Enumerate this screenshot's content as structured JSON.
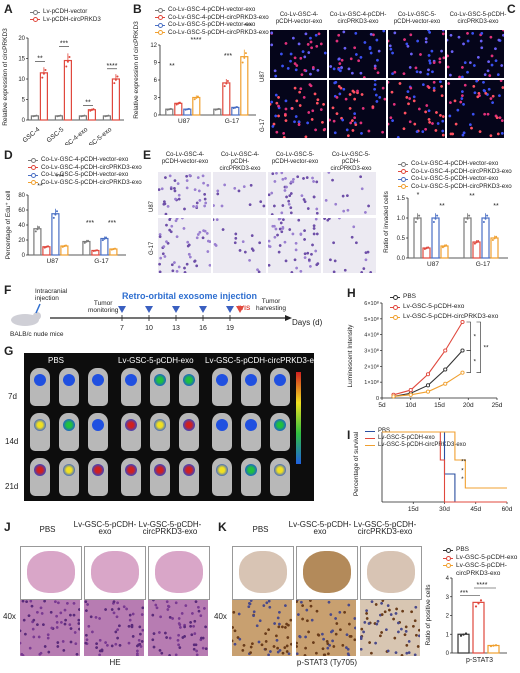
{
  "panels": {
    "A": {
      "label": "A",
      "ylabel": "Relative expression of circPRKD3",
      "legend": [
        "Lv-pCDH-vector",
        "Lv-pCDH-circPRKD3"
      ],
      "categories": [
        "GSC-4",
        "GSC-5",
        "GSC-4-exo",
        "GSC-5-exo"
      ],
      "yticks": [
        "0",
        "5",
        "10",
        "15",
        "20"
      ],
      "sig": [
        "**",
        "***",
        "**",
        "****"
      ]
    },
    "B": {
      "label": "B",
      "ylabel": "Relative expression of circPRKD3",
      "legend": [
        "Co-Lv-GSC-4-pCDH-vector-exo",
        "Co-Lv-GSC-4-pCDH-circPRKD3-exo",
        "Co-Lv-GSC-5-pCDH-vector-exo",
        "Co-Lv-GSC-5-pCDH-circPRKD3-exo"
      ],
      "categories": [
        "U87",
        "G-17"
      ],
      "yticks": [
        "0",
        "3",
        "6",
        "9",
        "12"
      ],
      "sig": [
        "**",
        "****",
        "***",
        "***"
      ]
    },
    "C": {
      "label": "C",
      "titles": [
        "Co-Lv-GSC-4-\npCDH-vector-exo",
        "Co-Lv-GSC-4-pCDH-\ncircPRKD3-exo",
        "Co-Lv-GSC-5-\npCDH-vector-exo",
        "Co-Lv-GSC-5-pCDH-\ncircPRKD3-exo"
      ],
      "rows": [
        "U87",
        "G-17"
      ]
    },
    "D": {
      "label": "D",
      "ylabel": "Percentage of Edu⁺ cell",
      "legend": [
        "Co-Lv-GSC-4-pCDH-vector-exo",
        "Co-Lv-GSC-4-pCDH-circPRKD3-exo",
        "Co-Lv-GSC-5-pCDH-vector-exo",
        "Co-Lv-GSC-5-pCDH-circPRKD3-exo"
      ],
      "categories": [
        "U87",
        "G-17"
      ],
      "yticks": [
        "0",
        "20",
        "40",
        "60",
        "80"
      ],
      "sig": [
        "**",
        "***",
        "***",
        "***"
      ]
    },
    "E": {
      "label": "E",
      "titles": [
        "Co-Lv-GSC-4-\npCDH-vector-exo",
        "Co-Lv-GSC-4-pCDH-\ncircPRKD3-exo",
        "Co-Lv-GSC-5-\npCDH-vector-exo",
        "Co-Lv-GSC-5-pCDH-\ncircPRKD3-exo"
      ],
      "rows": [
        "U87",
        "G-17"
      ],
      "ylabel": "Ratio of invaded cells",
      "legend": [
        "Co-Lv-GSC-4-pCDH-vector-exo",
        "Co-Lv-GSC-4-pCDH-circPRKD3-exo",
        "Co-Lv-GSC-5-pCDH-vector-exo",
        "Co-Lv-GSC-5-pCDH-circPRKD3-exo"
      ],
      "categories": [
        "U87",
        "G-17"
      ],
      "yticks": [
        "0.0",
        "0.5",
        "1.0",
        "1.5"
      ],
      "sig": [
        "*",
        "**",
        "**",
        "**"
      ]
    },
    "F": {
      "label": "F",
      "injection": "Intracranial\ninjection",
      "monitor": "Tumor\nmonitoring",
      "retro": "Retro-orbital exosome injection",
      "ivis": "IVIS",
      "harvest": "Tumor\nharvesting",
      "days": [
        "7",
        "10",
        "13",
        "16",
        "19"
      ],
      "axis": "Days (d)",
      "mice": "BALB/c nude mice"
    },
    "G": {
      "label": "G",
      "groups": [
        "PBS",
        "Lv-GSC-5-pCDH-exo",
        "Lv-GSC-5-pCDH-circPRKD3-exo"
      ],
      "days": [
        "7d",
        "14d",
        "21d"
      ]
    },
    "H": {
      "label": "H",
      "ylabel": "Luminescent Intensity",
      "legend": [
        "PBS",
        "Lv-GSC-5-pCDH-exo",
        "Lv-GSC-5-pCDH-circPRKD3-exo"
      ],
      "xticks": [
        "5d",
        "10d",
        "15d",
        "20d",
        "25d"
      ],
      "yticks": [
        "0",
        "1×10⁸",
        "2×10⁸",
        "3×10⁸",
        "4×10⁸",
        "5×10⁸",
        "6×10⁸"
      ],
      "sig": [
        "*",
        "*",
        "**"
      ]
    },
    "I": {
      "label": "I",
      "ylabel": "Percentage of survival",
      "legend": [
        "PBS",
        "Lv-GSC-5-pCDH-exo",
        "Lv-GSC-5-pCDH-circPRKD3-exo"
      ],
      "xticks": [
        "15d",
        "30d",
        "45d",
        "60d"
      ],
      "sig": [
        "**",
        "*",
        "*"
      ]
    },
    "J": {
      "label": "J",
      "groups": [
        "PBS",
        "Lv-GSC-5-pCDH-\nexo",
        "Lv-GSC-5-pCDH-\ncircPRKD3-exo"
      ],
      "mag": "40x",
      "caption": "HE"
    },
    "K": {
      "label": "K",
      "groups": [
        "PBS",
        "Lv-GSC-5-pCDH-\nexo",
        "Lv-GSC-5-pCDH-\ncircPRKD3-exo"
      ],
      "mag": "40x",
      "caption": "p-STAT3 (Ty705)",
      "ylabel": "Ratio of positive cells",
      "legend": [
        "PBS",
        "Lv-GSC-5-pCDH-exo",
        "Lv-GSC-5-pCDH-\ncircPRKD3-exo"
      ],
      "xlabel": "p-STAT3",
      "yticks": [
        "0",
        "1",
        "2",
        "3",
        "4"
      ],
      "sig": [
        "***",
        "****"
      ]
    }
  },
  "colors": {
    "c1": "#7a7a7a",
    "c2": "#e0483d",
    "c3": "#4a6fc4",
    "c4": "#f0a030",
    "pbs": "#333333"
  },
  "chart_data": [
    {
      "panel": "A",
      "type": "bar",
      "categories": [
        "GSC-4",
        "GSC-5",
        "GSC-4-exo",
        "GSC-5-exo"
      ],
      "series": [
        {
          "name": "Lv-pCDH-vector",
          "values": [
            1,
            1,
            1,
            1
          ]
        },
        {
          "name": "Lv-pCDH-circPRKD3",
          "values": [
            11.5,
            14.5,
            2.5,
            10
          ]
        }
      ],
      "ylim": [
        0,
        20
      ]
    },
    {
      "panel": "B",
      "type": "bar",
      "categories": [
        "U87",
        "G-17"
      ],
      "series": [
        {
          "name": "Co-Lv-GSC-4-pCDH-vector-exo",
          "values": [
            1,
            1
          ]
        },
        {
          "name": "Co-Lv-GSC-4-pCDH-circPRKD3-exo",
          "values": [
            2,
            5.5
          ]
        },
        {
          "name": "Co-Lv-GSC-5-pCDH-vector-exo",
          "values": [
            1,
            1.3
          ]
        },
        {
          "name": "Co-Lv-GSC-5-pCDH-circPRKD3-exo",
          "values": [
            3,
            10
          ]
        }
      ],
      "ylim": [
        0,
        12
      ]
    },
    {
      "panel": "D",
      "type": "bar",
      "categories": [
        "U87",
        "G-17"
      ],
      "series": [
        {
          "name": "Co-Lv-GSC-4-pCDH-vector-exo",
          "values": [
            35,
            18
          ]
        },
        {
          "name": "Co-Lv-GSC-4-pCDH-circPRKD3-exo",
          "values": [
            11,
            6
          ]
        },
        {
          "name": "Co-Lv-GSC-5-pCDH-vector-exo",
          "values": [
            55,
            22
          ]
        },
        {
          "name": "Co-Lv-GSC-5-pCDH-circPRKD3-exo",
          "values": [
            12,
            8
          ]
        }
      ],
      "ylim": [
        0,
        80
      ]
    },
    {
      "panel": "E",
      "type": "bar",
      "categories": [
        "U87",
        "G-17"
      ],
      "series": [
        {
          "name": "Co-Lv-GSC-4-pCDH-vector-exo",
          "values": [
            1.0,
            1.0
          ]
        },
        {
          "name": "Co-Lv-GSC-4-pCDH-circPRKD3-exo",
          "values": [
            0.25,
            0.4
          ]
        },
        {
          "name": "Co-Lv-GSC-5-pCDH-vector-exo",
          "values": [
            1.0,
            1.0
          ]
        },
        {
          "name": "Co-Lv-GSC-5-pCDH-circPRKD3-exo",
          "values": [
            0.3,
            0.5
          ]
        }
      ],
      "ylim": [
        0,
        1.5
      ]
    },
    {
      "panel": "H",
      "type": "line",
      "x": [
        7,
        10,
        13,
        16,
        19
      ],
      "series": [
        {
          "name": "PBS",
          "values": [
            0.1,
            0.3,
            0.8,
            1.8,
            3.0
          ]
        },
        {
          "name": "Lv-GSC-5-pCDH-exo",
          "values": [
            0.2,
            0.5,
            1.5,
            3.0,
            4.8
          ]
        },
        {
          "name": "Lv-GSC-5-pCDH-circPRKD3-exo",
          "values": [
            0.1,
            0.2,
            0.4,
            0.9,
            1.6
          ]
        }
      ],
      "ylim": [
        0,
        6
      ]
    },
    {
      "panel": "I",
      "type": "line",
      "x": [
        0,
        28,
        30,
        35,
        40,
        45,
        60
      ],
      "series": [
        {
          "name": "PBS",
          "values": [
            100,
            100,
            40,
            0,
            0,
            0,
            0
          ]
        },
        {
          "name": "Lv-GSC-5-pCDH-exo",
          "values": [
            100,
            60,
            0,
            0,
            0,
            0,
            0
          ]
        },
        {
          "name": "Lv-GSC-5-pCDH-circPRKD3-exo",
          "values": [
            100,
            100,
            100,
            60,
            20,
            20,
            20
          ]
        }
      ],
      "ylim": [
        0,
        100
      ]
    },
    {
      "panel": "K",
      "type": "bar",
      "categories": [
        "p-STAT3"
      ],
      "series": [
        {
          "name": "PBS",
          "values": [
            1.0
          ]
        },
        {
          "name": "Lv-GSC-5-pCDH-exo",
          "values": [
            2.7
          ]
        },
        {
          "name": "Lv-GSC-5-pCDH-circPRKD3-exo",
          "values": [
            0.4
          ]
        }
      ],
      "ylim": [
        0,
        4
      ]
    }
  ]
}
